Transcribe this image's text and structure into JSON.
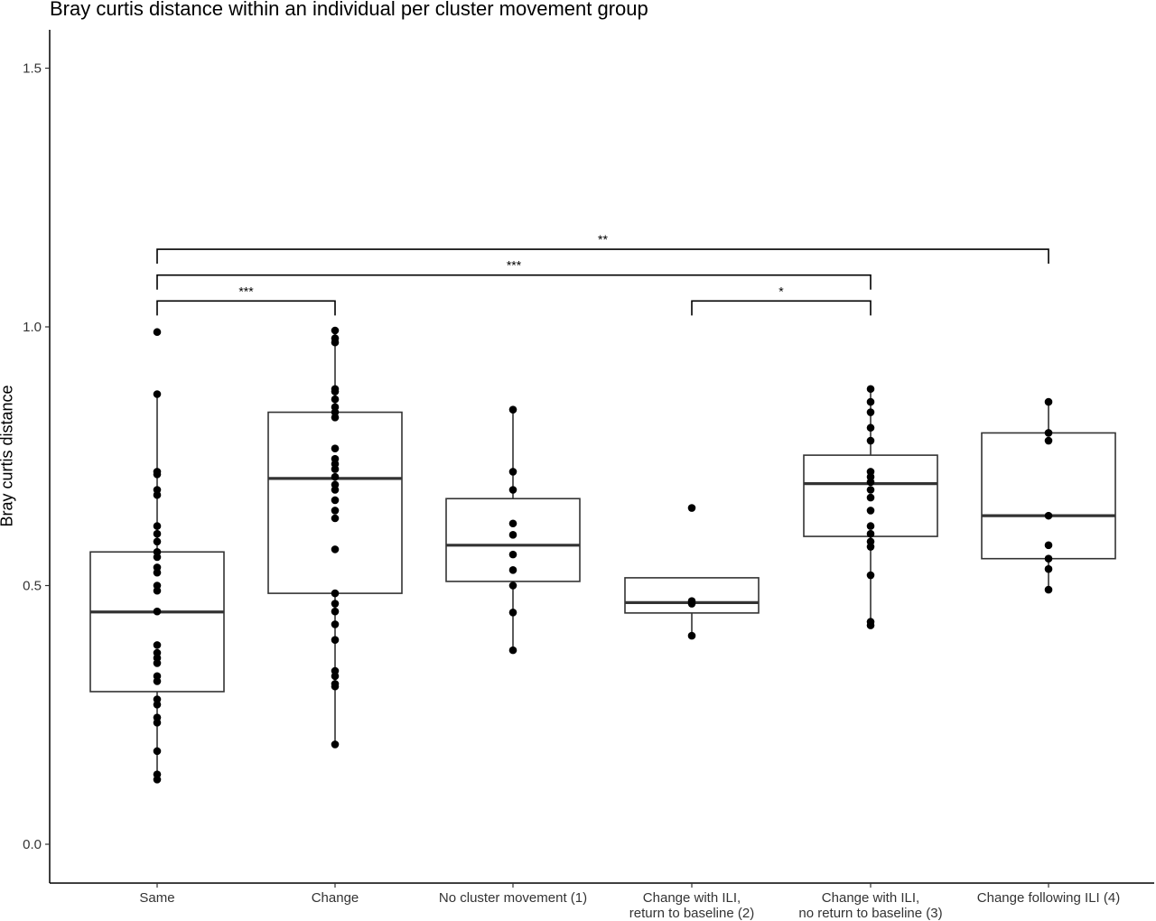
{
  "chart_data": {
    "type": "box",
    "title": "Bray curtis distance within an individual per cluster movement group",
    "xlabel": "",
    "ylabel": "Bray curtis distance",
    "ylim": [
      -0.07,
      1.58
    ],
    "yticks": [
      0.0,
      0.5,
      1.0,
      1.5
    ],
    "ytick_labels": [
      "0.0",
      "0.5",
      "1.0",
      "1.5"
    ],
    "grid": false,
    "categories": [
      [
        "Same"
      ],
      [
        "Change"
      ],
      [
        "No cluster movement (1)"
      ],
      [
        "Change with ILI,",
        "return to baseline (2)"
      ],
      [
        "Change with ILI,",
        "no return to baseline (3)"
      ],
      [
        "Change following ILI (4)"
      ]
    ],
    "boxes": [
      {
        "q1": 0.295,
        "median": 0.449,
        "q3": 0.565,
        "whisker_low": 0.125,
        "whisker_high": 0.87
      },
      {
        "q1": 0.485,
        "median": 0.707,
        "q3": 0.835,
        "whisker_low": 0.193,
        "whisker_high": 0.993
      },
      {
        "q1": 0.508,
        "median": 0.578,
        "q3": 0.668,
        "whisker_low": 0.375,
        "whisker_high": 0.84
      },
      {
        "q1": 0.447,
        "median": 0.467,
        "q3": 0.515,
        "whisker_low": 0.403,
        "whisker_high": 0.515
      },
      {
        "q1": 0.595,
        "median": 0.697,
        "q3": 0.752,
        "whisker_low": 0.423,
        "whisker_high": 0.88
      },
      {
        "q1": 0.552,
        "median": 0.635,
        "q3": 0.795,
        "whisker_low": 0.492,
        "whisker_high": 0.855
      }
    ],
    "points": [
      [
        0.99,
        0.87,
        0.72,
        0.715,
        0.685,
        0.675,
        0.615,
        0.6,
        0.585,
        0.565,
        0.555,
        0.535,
        0.525,
        0.5,
        0.49,
        0.45,
        0.385,
        0.37,
        0.36,
        0.35,
        0.325,
        0.315,
        0.28,
        0.27,
        0.245,
        0.235,
        0.18,
        0.135,
        0.125
      ],
      [
        0.993,
        0.978,
        0.97,
        0.88,
        0.875,
        0.86,
        0.845,
        0.835,
        0.825,
        0.765,
        0.745,
        0.735,
        0.725,
        0.71,
        0.695,
        0.685,
        0.665,
        0.645,
        0.63,
        0.57,
        0.485,
        0.465,
        0.45,
        0.425,
        0.395,
        0.335,
        0.325,
        0.31,
        0.305,
        0.193
      ],
      [
        0.84,
        0.72,
        0.685,
        0.62,
        0.598,
        0.56,
        0.53,
        0.5,
        0.448,
        0.375
      ],
      [
        0.65,
        0.47,
        0.465,
        0.403
      ],
      [
        0.88,
        0.855,
        0.835,
        0.805,
        0.78,
        0.72,
        0.71,
        0.7,
        0.685,
        0.67,
        0.645,
        0.615,
        0.6,
        0.585,
        0.575,
        0.52,
        0.43,
        0.423
      ],
      [
        0.855,
        0.795,
        0.78,
        0.635,
        0.578,
        0.552,
        0.532,
        0.492
      ]
    ],
    "significance": [
      {
        "from": 0,
        "to": 1,
        "label": "***",
        "y": 1.05
      },
      {
        "from": 3,
        "to": 4,
        "label": "*",
        "y": 1.05
      },
      {
        "from": 0,
        "to": 4,
        "label": "***",
        "y": 1.1
      },
      {
        "from": 0,
        "to": 5,
        "label": "**",
        "y": 1.15
      }
    ]
  }
}
